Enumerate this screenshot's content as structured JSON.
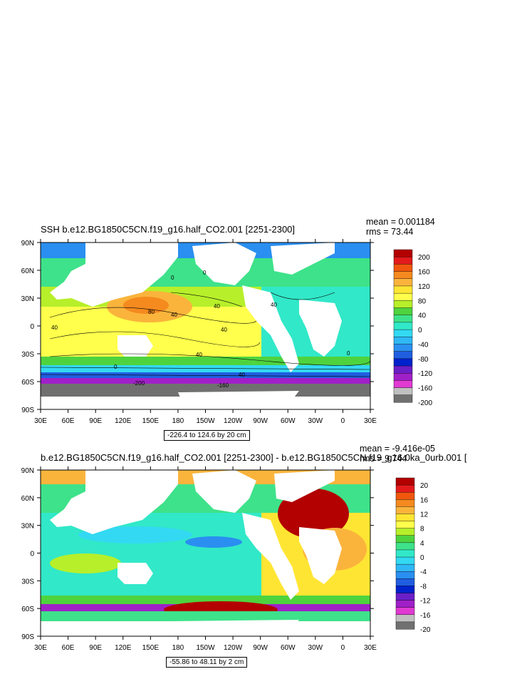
{
  "panels": [
    {
      "title": "SSH b.e12.BG1850C5CN.f19_g16.half_CO2.001 [2251-2300]",
      "mean": "mean = 0.001184",
      "rms": "rms = 73.44",
      "range": "-226.4 to 124.6 by 20 cm",
      "colorbar_labels": [
        "200",
        "160",
        "120",
        "80",
        "40",
        "0",
        "-40",
        "-80",
        "-120",
        "-160",
        "-200"
      ],
      "colorbar_colors": [
        "#b30000",
        "#e31a1c",
        "#f0560e",
        "#f58a1f",
        "#fab43c",
        "#ffe533",
        "#ffff4c",
        "#b7ef2a",
        "#4ed33f",
        "#3ee28a",
        "#31e8c8",
        "#33d9f2",
        "#2fb8f5",
        "#2a8ff0",
        "#205ee0",
        "#0022cc",
        "#6a1fc7",
        "#a020c8",
        "#e03ad2",
        "#c0c0c0",
        "#707070"
      ],
      "contour_labels": [
        "0",
        "40",
        "80",
        "40",
        "40",
        "40",
        "40",
        "0",
        "40",
        "0",
        "0",
        "-160",
        "-200",
        "40"
      ]
    },
    {
      "title": "b.e12.BG1850C5CN.f19_g16.half_CO2.001 [2251-2300] - b.e12.BG1850C5CN.f19_g16.0ka_0urb.001 [",
      "mean": "mean = -9.416e-05",
      "rms": "rms = 9.744",
      "range": "-55.86 to 48.11 by 2 cm",
      "colorbar_labels": [
        "20",
        "16",
        "12",
        "8",
        "4",
        "0",
        "-4",
        "-8",
        "-12",
        "-16",
        "-20"
      ],
      "colorbar_colors": [
        "#b30000",
        "#e31a1c",
        "#f0560e",
        "#f58a1f",
        "#fab43c",
        "#ffe533",
        "#ffff4c",
        "#b7ef2a",
        "#4ed33f",
        "#3ee28a",
        "#31e8c8",
        "#33d9f2",
        "#2fb8f5",
        "#2a8ff0",
        "#205ee0",
        "#0022cc",
        "#6a1fc7",
        "#a020c8",
        "#e03ad2",
        "#c0c0c0",
        "#707070"
      ]
    }
  ],
  "lat_labels": [
    "90N",
    "60N",
    "30N",
    "0",
    "30S",
    "60S",
    "90S"
  ],
  "lon_labels": [
    "30E",
    "60E",
    "90E",
    "120E",
    "150E",
    "180",
    "150W",
    "120W",
    "90W",
    "60W",
    "30W",
    "0",
    "30E"
  ]
}
